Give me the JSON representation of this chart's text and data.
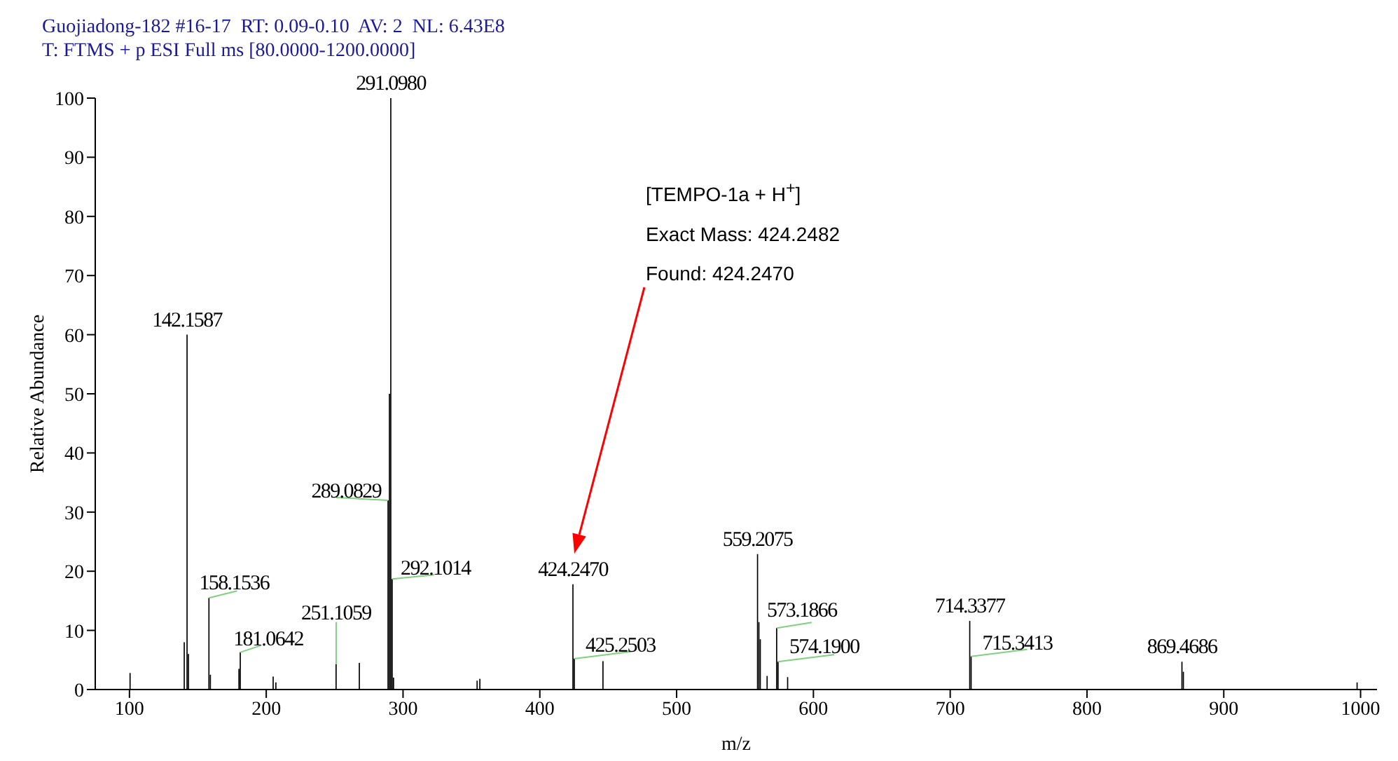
{
  "chart_data": {
    "type": "bar",
    "title": "Guojiadong-182 #16-17  RT: 0.09-0.10  AV: 2  NL: 6.43E8",
    "subtitle": "T: FTMS + p ESI Full ms [80.0000-1200.0000]",
    "xlabel": "m/z",
    "ylabel": "Relative Abundance",
    "x": [
      100.5,
      140.1,
      142.1587,
      143.2,
      158.1536,
      159.2,
      180.1,
      181.0642,
      205.1,
      207.1,
      251.1059,
      268.1,
      289.0829,
      290.1,
      291.098,
      292.1014,
      293.1,
      354.2,
      356.2,
      424.247,
      425.2503,
      446.2,
      559.2075,
      560.2,
      561.2,
      566.2,
      573.1866,
      574.19,
      581.2,
      714.3377,
      715.3413,
      869.4686,
      870.5,
      997.5
    ],
    "values": [
      2.8,
      8,
      60,
      6,
      15.5,
      2.5,
      3.5,
      6.3,
      2.2,
      1.2,
      4.3,
      4.5,
      32,
      50,
      100,
      18.7,
      2,
      1.5,
      1.8,
      17.8,
      5.2,
      4.8,
      22.9,
      11.4,
      8.5,
      2.3,
      10.4,
      4.7,
      2.1,
      11.6,
      5.6,
      4.7,
      3,
      1.2
    ],
    "color": "#000000",
    "xlim": [
      75,
      1012
    ],
    "xticks": [
      100,
      200,
      300,
      400,
      500,
      600,
      700,
      800,
      900,
      1000
    ],
    "ylim": [
      0,
      100
    ],
    "yticks": [
      0,
      10,
      20,
      30,
      40,
      50,
      60,
      70,
      80,
      90,
      100
    ],
    "annotations": [
      "[TEMPO-1a + H$^{+}$]",
      "Exact Mass: 424.2482",
      "Found: 424.2470",
      {
        "text": "142.1587",
        "x": 142.1587,
        "y": 60
      },
      {
        "text": "158.1536",
        "x": 158.1536,
        "y": 15.5
      },
      {
        "text": "181.0642",
        "x": 181.0642,
        "y": 6.3
      },
      {
        "text": "251.1059",
        "x": 251.1059,
        "y": 4.3
      },
      {
        "text": "289.0829",
        "x": 289.0829,
        "y": 32
      },
      {
        "text": "291.0980",
        "x": 291.098,
        "y": 100
      },
      {
        "text": "292.1014",
        "x": 292.1014,
        "y": 18.7
      },
      {
        "text": "424.2470",
        "x": 424.247,
        "y": 17.8
      },
      {
        "text": "425.2503",
        "x": 425.2503,
        "y": 5.2
      },
      {
        "text": "559.2075",
        "x": 559.2075,
        "y": 22.9
      },
      {
        "text": "573.1866",
        "x": 573.1866,
        "y": 10.4
      },
      {
        "text": "574.1900",
        "x": 574.19,
        "y": 4.7
      },
      {
        "text": "714.3377",
        "x": 714.3377,
        "y": 11.6
      },
      {
        "text": "715.3413",
        "x": 715.3413,
        "y": 5.6
      },
      {
        "text": "869.4686",
        "x": 869.4686,
        "y": 4.7
      }
    ]
  }
}
